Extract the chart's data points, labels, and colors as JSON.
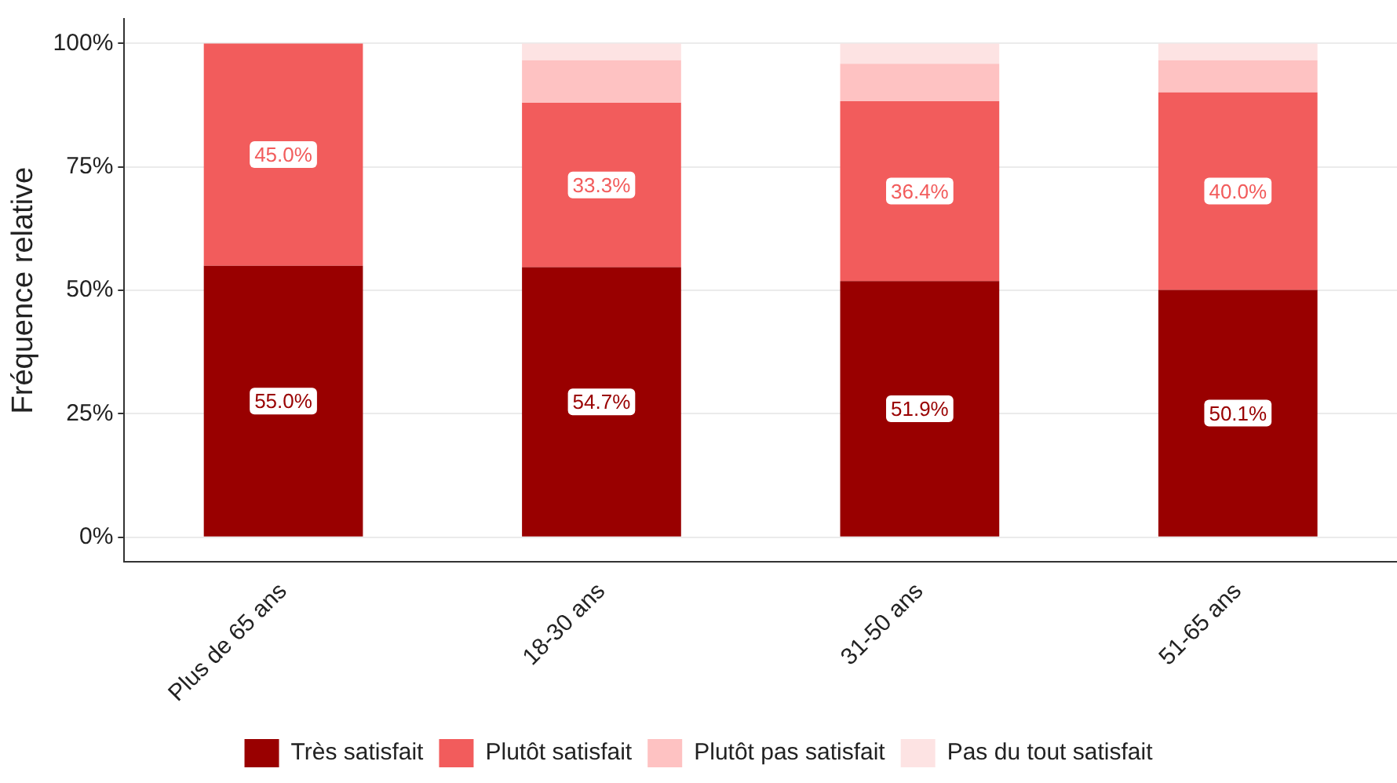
{
  "chart_data": {
    "type": "bar",
    "stacked": true,
    "ylabel": "Fréquence relative",
    "categories": [
      "Plus de 65 ans",
      "18-30 ans",
      "31-50 ans",
      "51-65 ans"
    ],
    "series": [
      {
        "name": "Très satisfait",
        "color": "#990000",
        "values": [
          55.0,
          54.7,
          51.9,
          50.1
        ],
        "value_labels": [
          "55.0%",
          "54.7%",
          "51.9%",
          "50.1%"
        ]
      },
      {
        "name": "Plutôt satisfait",
        "color": "#f25c5c",
        "values": [
          45.0,
          33.3,
          36.4,
          40.0
        ],
        "value_labels": [
          "45.0%",
          "33.3%",
          "36.4%",
          "40.0%"
        ]
      },
      {
        "name": "Plutôt pas satisfait",
        "color": "#fec2c2",
        "values": [
          0,
          8.6,
          7.6,
          6.5
        ]
      },
      {
        "name": "Pas du tout satisfait",
        "color": "#fde3e3",
        "values": [
          0,
          3.4,
          4.1,
          3.4
        ]
      }
    ],
    "ylim": [
      -5,
      105
    ],
    "yticks": [
      {
        "value": 0,
        "label": "0%"
      },
      {
        "value": 25,
        "label": "25%"
      },
      {
        "value": 50,
        "label": "50%"
      },
      {
        "value": 75,
        "label": "75%"
      },
      {
        "value": 100,
        "label": "100%"
      }
    ],
    "grid": "y",
    "legend": "bottom"
  }
}
